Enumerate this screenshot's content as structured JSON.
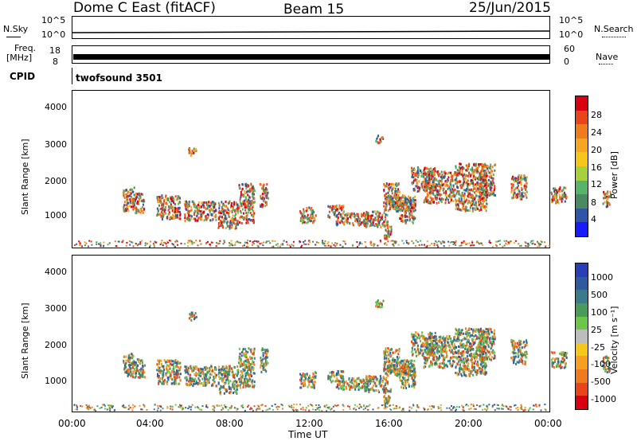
{
  "header": {
    "title": "Dome C East (fitACF)",
    "beam": "Beam 15",
    "date": "25/Jun/2015"
  },
  "top_panels": {
    "nsky_label": "N.Sky",
    "nsky_top": "10^5",
    "nsky_bottom": "10^0",
    "nsearch_label": "N.Search",
    "nsearch_top": "10^5",
    "nsearch_bottom": "10^0",
    "freq_label": "Freq.",
    "freq_unit": "[MHz]",
    "freq_top": "18",
    "freq_bottom": "8",
    "nave_label": "Nave",
    "nave_top": "60",
    "nave_bottom": "0",
    "cpid_label": "CPID",
    "cpid_value": "twofsound 3501"
  },
  "power_panel": {
    "ylabel": "Slant Range [km]",
    "yticks": [
      "4000",
      "3000",
      "2000",
      "1000"
    ],
    "colorbar_label": "Power [dB]",
    "colorbar_ticks": [
      "28",
      "24",
      "20",
      "16",
      "12",
      "8",
      "4"
    ],
    "colorbar_colors": [
      "#1a1aff",
      "#2f55a8",
      "#4a8a62",
      "#56b56a",
      "#a5d23c",
      "#f5c71a",
      "#f5a623",
      "#f07b1e",
      "#e8451c",
      "#d9000f"
    ]
  },
  "velocity_panel": {
    "ylabel": "Slant Range [km]",
    "yticks": [
      "4000",
      "3000",
      "2000",
      "1000"
    ],
    "colorbar_label": "Velocity [m s⁻¹]",
    "colorbar_ticks": [
      "1000",
      "500",
      "100",
      "25",
      "-25",
      "-100",
      "-500",
      "-1000"
    ],
    "colorbar_colors": [
      "#2a3fb5",
      "#2f5aa0",
      "#3a7a8a",
      "#4a9a5a",
      "#6cc64a",
      "#bdbdbd",
      "#f5c71a",
      "#f59f23",
      "#f07b1e",
      "#e8451c",
      "#d9000f"
    ]
  },
  "xaxis": {
    "ticks": [
      "00:00",
      "04:00",
      "08:00",
      "12:00",
      "16:00",
      "20:00",
      "00:00"
    ],
    "label": "Time UT"
  }
}
